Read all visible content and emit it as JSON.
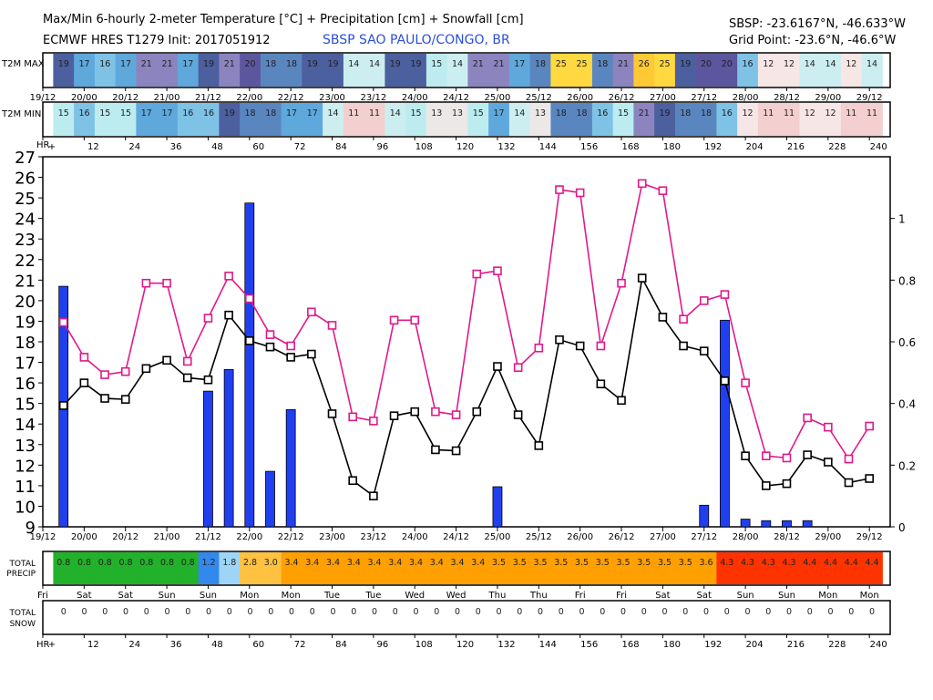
{
  "header": {
    "title": "Max/Min 6-hourly 2-meter Temperature [°C] + Precipitation [cm] + Snowfall [cm]",
    "model_init": "ECMWF HRES T1279 Init: 2017051912",
    "station": "SBSP SAO PAULO/CONGO, BR",
    "station_coords": "SBSP: -23.6167°N, -46.633°W",
    "grid_point": "Grid Point: -23.6°N, -46.6°W"
  },
  "rows": {
    "t2m_max_label": "T2M MAX",
    "t2m_min_label": "T2M MIN",
    "precip_label_1": "TOTAL",
    "precip_label_2": "PRECIP",
    "snow_label_1": "TOTAL",
    "snow_label_2": "SNOW",
    "hr_label": "HR"
  },
  "colors": {
    "max_line": "#e0198c",
    "min_line": "#000000",
    "precip_bar": "#2040f0"
  },
  "chart_data": {
    "type": "line",
    "title": "Max/Min 6-hourly 2-meter Temperature [°C] + Precipitation [cm] + Snowfall [cm]",
    "x_hours": [
      6,
      12,
      18,
      24,
      30,
      36,
      42,
      48,
      54,
      60,
      66,
      72,
      78,
      84,
      90,
      96,
      102,
      108,
      114,
      120,
      126,
      132,
      138,
      144,
      150,
      156,
      162,
      168,
      174,
      180,
      186,
      192,
      198,
      204,
      210,
      216,
      222,
      228,
      234,
      240
    ],
    "date_ticks": [
      "19/12",
      "20/00",
      "20/12",
      "21/00",
      "21/12",
      "22/00",
      "22/12",
      "23/00",
      "23/12",
      "24/00",
      "24/12",
      "25/00",
      "25/12",
      "26/00",
      "26/12",
      "27/00",
      "27/12",
      "28/00",
      "28/12",
      "29/00",
      "29/12"
    ],
    "hour_ticks": [
      "+",
      "12",
      "24",
      "36",
      "48",
      "60",
      "72",
      "84",
      "96",
      "108",
      "120",
      "132",
      "144",
      "156",
      "168",
      "180",
      "192",
      "204",
      "216",
      "228",
      "240"
    ],
    "day_ticks": [
      "Fri",
      "Sat",
      "Sat",
      "Sun",
      "Sun",
      "Mon",
      "Mon",
      "Tue",
      "Tue",
      "Wed",
      "Wed",
      "Thu",
      "Thu",
      "Fri",
      "Fri",
      "Sat",
      "Sat",
      "Sun",
      "Sun",
      "Mon",
      "Mon"
    ],
    "y_left": {
      "label": "Temperature [°C]",
      "range": [
        9,
        27
      ],
      "ticks": [
        9,
        10,
        11,
        12,
        13,
        14,
        15,
        16,
        17,
        18,
        19,
        20,
        21,
        22,
        23,
        24,
        25,
        26,
        27
      ]
    },
    "y_right": {
      "label": "Precipitation [cm]",
      "range": [
        0,
        1.2
      ],
      "ticks": [
        "0",
        "0.2",
        "0.4",
        "0.6",
        "0.8",
        "1"
      ]
    },
    "series": [
      {
        "name": "T2M MAX",
        "type": "line",
        "values": [
          18.95,
          17.25,
          16.4,
          16.55,
          20.85,
          20.85,
          17.05,
          19.15,
          21.2,
          20.1,
          18.35,
          17.8,
          19.45,
          18.8,
          14.35,
          14.15,
          19.05,
          19.05,
          14.6,
          14.45,
          21.3,
          21.45,
          16.75,
          17.7,
          25.4,
          25.25,
          17.8,
          20.85,
          25.7,
          25.35,
          19.1,
          20.0,
          20.3,
          16.0,
          12.45,
          12.35,
          14.3,
          13.85,
          12.3,
          13.9
        ]
      },
      {
        "name": "T2M MIN",
        "type": "line",
        "values": [
          14.9,
          16.0,
          15.25,
          15.2,
          16.7,
          17.1,
          16.25,
          16.15,
          19.3,
          18.05,
          17.75,
          17.25,
          17.4,
          14.5,
          11.25,
          10.5,
          14.4,
          14.6,
          12.75,
          12.7,
          14.6,
          16.8,
          14.45,
          12.95,
          18.1,
          17.8,
          15.95,
          15.15,
          21.1,
          19.2,
          17.8,
          17.55,
          16.1,
          12.45,
          11.0,
          11.1,
          12.5,
          12.15,
          11.15,
          11.35
        ]
      },
      {
        "name": "Precipitation",
        "type": "bar",
        "values": [
          0.78,
          0,
          0,
          0,
          0,
          0,
          0,
          0.44,
          0.51,
          1.05,
          0.18,
          0.38,
          0,
          0,
          0,
          0,
          0,
          0,
          0,
          0,
          0,
          0.13,
          0,
          0,
          0,
          0,
          0,
          0,
          0,
          0,
          0,
          0.07,
          0.67,
          0.025,
          0.02,
          0.02,
          0.02,
          0,
          0,
          0
        ]
      }
    ],
    "t2m_max_row": [
      19,
      17,
      16,
      17,
      21,
      21,
      17,
      19,
      21,
      20,
      18,
      18,
      19,
      19,
      14,
      14,
      19,
      19,
      15,
      14,
      21,
      21,
      17,
      18,
      25,
      25,
      18,
      21,
      26,
      25,
      19,
      20,
      20,
      16,
      12,
      12,
      14,
      14,
      12,
      14
    ],
    "t2m_min_row": [
      15,
      16,
      15,
      15,
      17,
      17,
      16,
      16,
      19,
      18,
      18,
      17,
      17,
      14,
      11,
      11,
      14,
      15,
      13,
      13,
      15,
      17,
      14,
      13,
      18,
      18,
      16,
      15,
      21,
      19,
      18,
      18,
      16,
      12,
      11,
      11,
      12,
      12,
      11,
      11
    ],
    "total_precip_row": [
      "0.8",
      "0.8",
      "0.8",
      "0.8",
      "0.8",
      "0.8",
      "0.8",
      "1.2",
      "1.8",
      "2.8",
      "3.0",
      "3.4",
      "3.4",
      "3.4",
      "3.4",
      "3.4",
      "3.4",
      "3.4",
      "3.4",
      "3.4",
      "3.4",
      "3.5",
      "3.5",
      "3.5",
      "3.5",
      "3.5",
      "3.5",
      "3.5",
      "3.5",
      "3.5",
      "3.5",
      "3.6",
      "4.3",
      "4.3",
      "4.3",
      "4.3",
      "4.4",
      "4.4",
      "4.4",
      "4.4"
    ],
    "total_snow_row": [
      "0",
      "0",
      "0",
      "0",
      "0",
      "0",
      "0",
      "0",
      "0",
      "0",
      "0",
      "0",
      "0",
      "0",
      "0",
      "0",
      "0",
      "0",
      "0",
      "0",
      "0",
      "0",
      "0",
      "0",
      "0",
      "0",
      "0",
      "0",
      "0",
      "0",
      "0",
      "0",
      "0",
      "0",
      "0",
      "0",
      "0",
      "0",
      "0",
      "0"
    ]
  }
}
